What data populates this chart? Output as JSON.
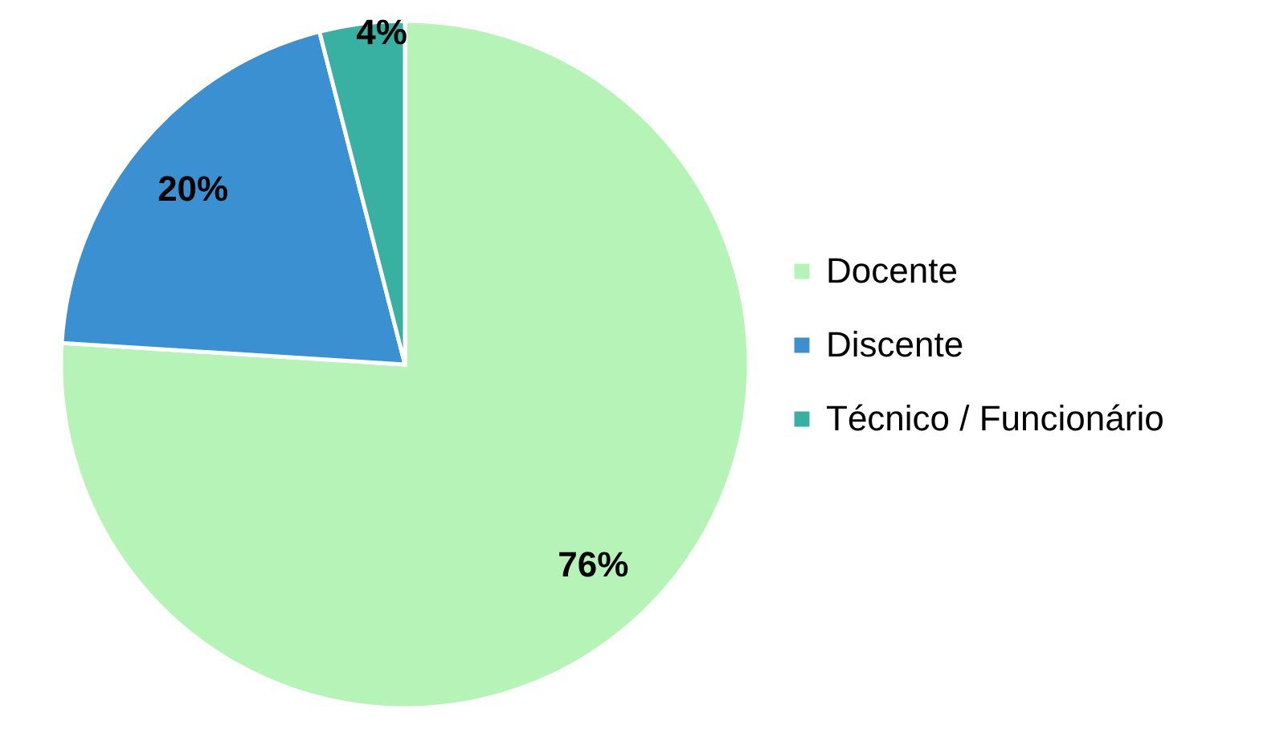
{
  "chart_data": {
    "type": "pie",
    "categories": [
      "Docente",
      "Discente",
      "Técnico / Funcionário"
    ],
    "values": [
      76,
      20,
      4
    ],
    "colors": [
      "#b6f3b6",
      "#3a90d0",
      "#38b0a2"
    ],
    "value_labels": [
      "76%",
      "20%",
      "4%"
    ],
    "legend": "right"
  }
}
